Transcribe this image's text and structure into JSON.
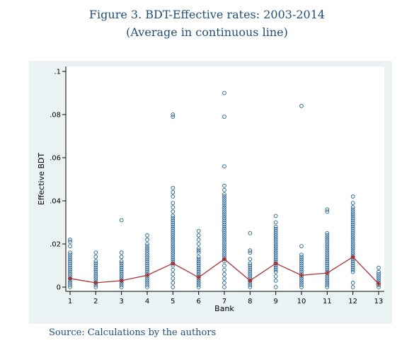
{
  "figure": {
    "title_line1": "Figure 3.  BDT-Effective rates: 2003-2014",
    "title_line2": "(Average in continuous line)",
    "source": "Source: Calculations by the authors"
  },
  "chart_data": {
    "type": "scatter",
    "xlabel": "Bank",
    "ylabel": "Effective BDT",
    "xlim": [
      1,
      13
    ],
    "ylim": [
      0,
      0.1
    ],
    "x_ticks": [
      1,
      2,
      3,
      4,
      5,
      6,
      7,
      8,
      9,
      10,
      11,
      12,
      13
    ],
    "y_ticks": [
      0,
      0.02,
      0.04,
      0.06,
      0.08,
      0.1
    ],
    "y_tick_labels": [
      "0",
      ".02",
      ".04",
      ".06",
      ".08",
      ".1"
    ],
    "grid": false,
    "colors": {
      "points": "#1f5d8c",
      "mean_line": "#a83232",
      "panel": "#eaf2f3"
    },
    "observations": [
      {
        "bank": 1,
        "values": [
          0.0,
          0.001,
          0.002,
          0.003,
          0.004,
          0.005,
          0.006,
          0.007,
          0.008,
          0.009,
          0.01,
          0.011,
          0.012,
          0.013,
          0.014,
          0.015,
          0.016,
          0.019,
          0.021,
          0.022
        ]
      },
      {
        "bank": 2,
        "values": [
          0.0,
          0.001,
          0.002,
          0.003,
          0.004,
          0.005,
          0.006,
          0.007,
          0.008,
          0.009,
          0.01,
          0.011,
          0.012,
          0.014,
          0.016
        ]
      },
      {
        "bank": 3,
        "values": [
          0.0,
          0.001,
          0.002,
          0.003,
          0.004,
          0.005,
          0.006,
          0.007,
          0.008,
          0.009,
          0.01,
          0.011,
          0.012,
          0.014,
          0.016,
          0.031
        ]
      },
      {
        "bank": 4,
        "values": [
          0.0,
          0.001,
          0.002,
          0.003,
          0.004,
          0.005,
          0.006,
          0.007,
          0.008,
          0.009,
          0.01,
          0.011,
          0.012,
          0.013,
          0.014,
          0.015,
          0.016,
          0.017,
          0.018,
          0.019,
          0.02,
          0.022,
          0.024
        ]
      },
      {
        "bank": 5,
        "values": [
          0.0,
          0.002,
          0.004,
          0.006,
          0.008,
          0.01,
          0.011,
          0.012,
          0.013,
          0.014,
          0.015,
          0.016,
          0.017,
          0.018,
          0.019,
          0.02,
          0.021,
          0.022,
          0.023,
          0.024,
          0.025,
          0.026,
          0.027,
          0.028,
          0.029,
          0.03,
          0.031,
          0.032,
          0.033,
          0.035,
          0.037,
          0.039,
          0.042,
          0.044,
          0.046,
          0.079,
          0.08
        ]
      },
      {
        "bank": 6,
        "values": [
          0.0,
          0.001,
          0.002,
          0.003,
          0.004,
          0.005,
          0.006,
          0.007,
          0.008,
          0.009,
          0.01,
          0.011,
          0.012,
          0.013,
          0.014,
          0.016,
          0.017,
          0.018,
          0.02,
          0.022,
          0.024,
          0.026
        ]
      },
      {
        "bank": 7,
        "values": [
          0.0,
          0.002,
          0.004,
          0.006,
          0.008,
          0.01,
          0.012,
          0.013,
          0.014,
          0.015,
          0.016,
          0.017,
          0.018,
          0.019,
          0.02,
          0.021,
          0.022,
          0.023,
          0.024,
          0.025,
          0.026,
          0.027,
          0.028,
          0.029,
          0.03,
          0.031,
          0.032,
          0.033,
          0.034,
          0.035,
          0.036,
          0.037,
          0.038,
          0.039,
          0.04,
          0.041,
          0.042,
          0.043,
          0.045,
          0.047,
          0.056,
          0.079,
          0.09
        ]
      },
      {
        "bank": 8,
        "values": [
          0.0,
          0.001,
          0.002,
          0.003,
          0.004,
          0.005,
          0.006,
          0.007,
          0.008,
          0.009,
          0.01,
          0.011,
          0.013,
          0.016,
          0.017,
          0.025
        ]
      },
      {
        "bank": 9,
        "values": [
          0.0,
          0.003,
          0.005,
          0.007,
          0.008,
          0.009,
          0.01,
          0.011,
          0.012,
          0.013,
          0.014,
          0.015,
          0.016,
          0.017,
          0.018,
          0.019,
          0.02,
          0.021,
          0.022,
          0.023,
          0.024,
          0.025,
          0.026,
          0.027,
          0.028,
          0.03,
          0.033
        ]
      },
      {
        "bank": 10,
        "values": [
          0.0,
          0.001,
          0.002,
          0.003,
          0.004,
          0.005,
          0.006,
          0.007,
          0.008,
          0.009,
          0.01,
          0.011,
          0.012,
          0.013,
          0.014,
          0.015,
          0.019,
          0.084
        ]
      },
      {
        "bank": 11,
        "values": [
          0.0,
          0.001,
          0.002,
          0.003,
          0.004,
          0.005,
          0.006,
          0.007,
          0.008,
          0.009,
          0.01,
          0.011,
          0.012,
          0.013,
          0.014,
          0.015,
          0.016,
          0.017,
          0.018,
          0.019,
          0.02,
          0.021,
          0.022,
          0.023,
          0.024,
          0.025,
          0.035,
          0.036
        ]
      },
      {
        "bank": 12,
        "values": [
          0.0,
          0.002,
          0.007,
          0.008,
          0.009,
          0.01,
          0.011,
          0.012,
          0.013,
          0.014,
          0.015,
          0.016,
          0.017,
          0.018,
          0.019,
          0.02,
          0.021,
          0.022,
          0.023,
          0.024,
          0.025,
          0.026,
          0.027,
          0.028,
          0.029,
          0.03,
          0.031,
          0.032,
          0.033,
          0.034,
          0.035,
          0.036,
          0.037,
          0.039,
          0.042
        ]
      },
      {
        "bank": 13,
        "values": [
          0.0,
          0.001,
          0.002,
          0.003,
          0.004,
          0.005,
          0.006,
          0.007,
          0.009
        ]
      }
    ],
    "mean_line": {
      "x": [
        1,
        2,
        3,
        4,
        5,
        6,
        7,
        8,
        9,
        10,
        11,
        12,
        13
      ],
      "y": [
        0.004,
        0.002,
        0.003,
        0.0055,
        0.011,
        0.0045,
        0.013,
        0.003,
        0.011,
        0.0055,
        0.0065,
        0.014,
        0.0015
      ]
    }
  }
}
